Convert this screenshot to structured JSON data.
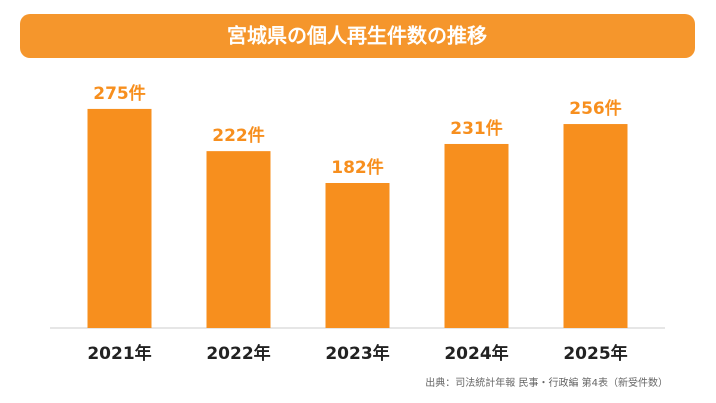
{
  "chart_data": {
    "type": "bar",
    "title": "宮城県の個人再生件数の推移",
    "categories": [
      "2021年",
      "2022年",
      "2023年",
      "2024年",
      "2025年"
    ],
    "values": [
      275,
      222,
      182,
      231,
      256
    ],
    "value_labels": [
      "275件",
      "222件",
      "182件",
      "231件",
      "256件"
    ],
    "color": "#f78f1e",
    "ylim": [
      0,
      300
    ],
    "source": "出典：司法統計年報 民事・行政編 第4表（新受件数）"
  }
}
